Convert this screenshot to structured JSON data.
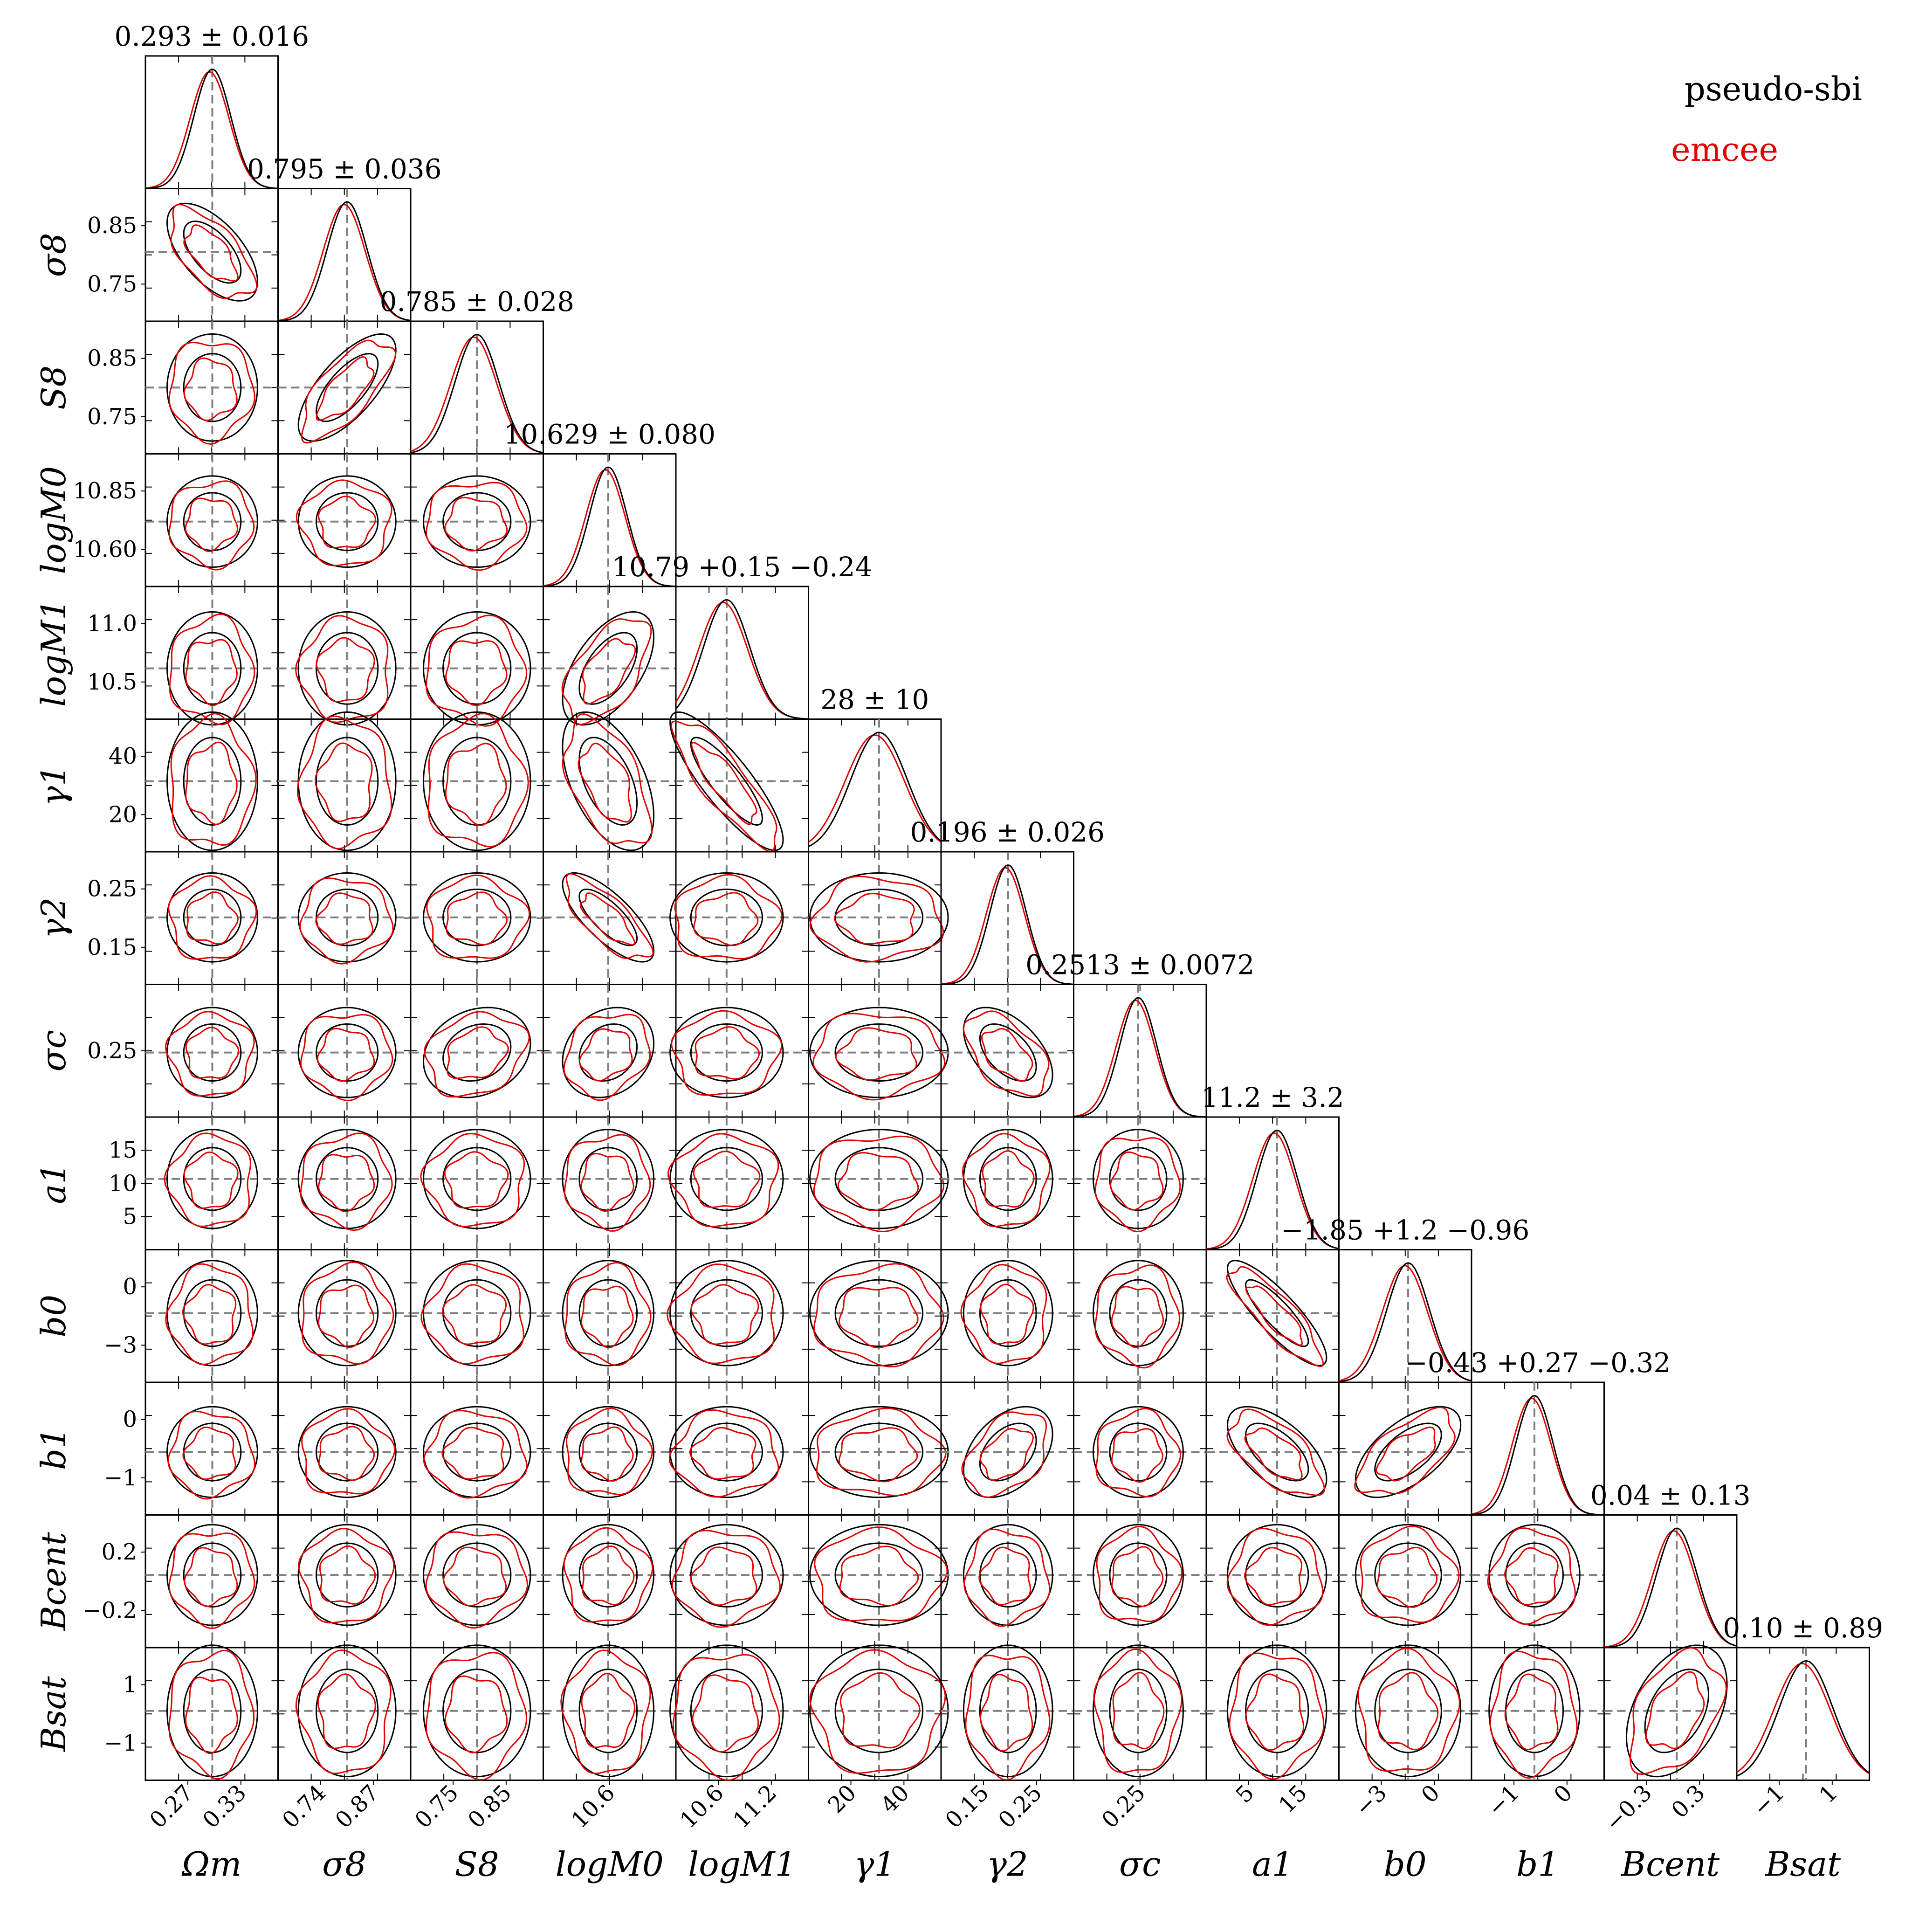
{
  "chart_data": {
    "type": "corner",
    "legend": {
      "placement": "top-right",
      "entries": [
        {
          "label": "pseudo-sbi",
          "color": "#000000"
        },
        {
          "label": "emcee",
          "color": "#e00000"
        }
      ]
    },
    "truth_line_color": "#808080",
    "params": [
      {
        "key": "Om",
        "label": "Ωm",
        "title": "0.293 ± 0.016",
        "range": [
          0.235,
          0.35
        ],
        "mean": 0.293,
        "sd": 0.016,
        "ticks": [
          "0.27",
          "0.33"
        ]
      },
      {
        "key": "s8",
        "label": "σ8",
        "title": "0.795 ± 0.036",
        "range": [
          0.67,
          0.91
        ],
        "mean": 0.795,
        "sd": 0.036,
        "ticks": [
          "0.74",
          "0.87"
        ],
        "yticks": [
          "0.85",
          "0.75"
        ]
      },
      {
        "key": "S8",
        "label": "S8",
        "title": "0.785 ± 0.028",
        "range": [
          0.7,
          0.87
        ],
        "mean": 0.785,
        "sd": 0.028,
        "ticks": [
          "0.75",
          "0.85"
        ],
        "yticks": [
          "0.85",
          "0.75"
        ]
      },
      {
        "key": "M0",
        "label": "logM0",
        "title": "10.629 ± 0.080",
        "range": [
          10.35,
          10.92
        ],
        "mean": 10.629,
        "sd": 0.08,
        "ticks": [
          "10.6"
        ],
        "yticks": [
          "10.85",
          "10.60"
        ]
      },
      {
        "key": "M1",
        "label": "logM1",
        "title": "10.79 +0.15 −0.24",
        "range": [
          10.35,
          11.5
        ],
        "mean": 10.79,
        "sd": 0.2,
        "ticks": [
          "10.6",
          "11.2"
        ],
        "yticks": [
          "11.0",
          "10.5"
        ]
      },
      {
        "key": "g1",
        "label": "γ1",
        "title": "28 ± 10",
        "range": [
          3,
          50
        ],
        "mean": 28,
        "sd": 10,
        "ticks": [
          "20",
          "40"
        ],
        "yticks": [
          "40",
          "20"
        ]
      },
      {
        "key": "g2",
        "label": "γ2",
        "title": "0.196 ± 0.026",
        "range": [
          0.1,
          0.29
        ],
        "mean": 0.196,
        "sd": 0.026,
        "ticks": [
          "0.15",
          "0.25"
        ],
        "yticks": [
          "0.25",
          "0.15"
        ]
      },
      {
        "key": "sc",
        "label": "σc",
        "title": "0.2513 ± 0.0072",
        "range": [
          0.226,
          0.278
        ],
        "mean": 0.2513,
        "sd": 0.0072,
        "ticks": [
          "0.25"
        ],
        "yticks": [
          "0.25"
        ]
      },
      {
        "key": "a1",
        "label": "a1",
        "title": "11.2 ± 3.2",
        "range": [
          0,
          21
        ],
        "mean": 11.2,
        "sd": 3.2,
        "ticks": [
          "5",
          "15"
        ],
        "yticks": [
          "15",
          "10",
          "5"
        ]
      },
      {
        "key": "b0",
        "label": "b0",
        "title": "−1.85 +1.2 −0.96",
        "range": [
          -5.4,
          1.4
        ],
        "mean": -1.85,
        "sd": 1.1,
        "ticks": [
          "−3",
          "0"
        ],
        "yticks": [
          "0",
          "−3"
        ]
      },
      {
        "key": "b1",
        "label": "b1",
        "title": "−0.43 +0.27 −0.32",
        "range": [
          -1.45,
          0.7
        ],
        "mean": -0.43,
        "sd": 0.3,
        "ticks": [
          "−1",
          "0"
        ],
        "yticks": [
          "0",
          "−1"
        ]
      },
      {
        "key": "Bc",
        "label": "Bcent",
        "title": "0.04 ± 0.13",
        "range": [
          -0.42,
          0.42
        ],
        "mean": 0.04,
        "sd": 0.13,
        "ticks": [
          "−0.3",
          "0.3"
        ],
        "yticks": [
          "0.2",
          "−0.2"
        ]
      },
      {
        "key": "Bs",
        "label": "Bsat",
        "title": "0.10 ± 0.89",
        "range": [
          -2.2,
          2.2
        ],
        "mean": 0.1,
        "sd": 0.89,
        "ticks": [
          "−1",
          "1"
        ],
        "yticks": [
          "1",
          "−1"
        ]
      }
    ]
  }
}
